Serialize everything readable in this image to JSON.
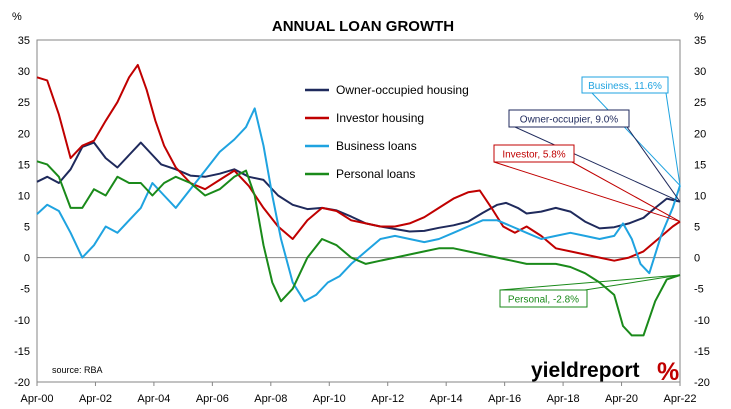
{
  "chart_data": {
    "type": "line",
    "title": "ANNUAL LOAN GROWTH",
    "ylabel_left": "%",
    "ylabel_right": "%",
    "ylim": [
      -20,
      35
    ],
    "yticks": [
      -20,
      -15,
      -10,
      -5,
      0,
      5,
      10,
      15,
      20,
      25,
      30,
      35
    ],
    "xlim": [
      2000.25,
      2022.25
    ],
    "xticks": [
      {
        "label": "Apr-00",
        "x": 2000.25
      },
      {
        "label": "Apr-02",
        "x": 2002.25
      },
      {
        "label": "Apr-04",
        "x": 2004.25
      },
      {
        "label": "Apr-06",
        "x": 2006.25
      },
      {
        "label": "Apr-08",
        "x": 2008.25
      },
      {
        "label": "Apr-10",
        "x": 2010.25
      },
      {
        "label": "Apr-12",
        "x": 2012.25
      },
      {
        "label": "Apr-14",
        "x": 2014.25
      },
      {
        "label": "Apr-16",
        "x": 2016.25
      },
      {
        "label": "Apr-18",
        "x": 2018.25
      },
      {
        "label": "Apr-20",
        "x": 2020.25
      },
      {
        "label": "Apr-22",
        "x": 2022.25
      }
    ],
    "legend_position": "top-center",
    "source": "source: RBA",
    "brand": {
      "text": "yieldreport",
      "mark": "%"
    },
    "series": [
      {
        "name": "Owner-occupied housing",
        "color": "#1f2a5c",
        "points": [
          [
            2000.25,
            12.2
          ],
          [
            2000.6,
            13.0
          ],
          [
            2001.0,
            12.0
          ],
          [
            2001.4,
            14.2
          ],
          [
            2001.8,
            17.8
          ],
          [
            2002.2,
            18.5
          ],
          [
            2002.6,
            16.0
          ],
          [
            2003.0,
            14.5
          ],
          [
            2003.4,
            16.5
          ],
          [
            2003.8,
            18.5
          ],
          [
            2004.2,
            16.5
          ],
          [
            2004.5,
            15.0
          ],
          [
            2005.0,
            14.2
          ],
          [
            2005.5,
            13.2
          ],
          [
            2006.0,
            13.0
          ],
          [
            2006.5,
            13.5
          ],
          [
            2007.0,
            14.2
          ],
          [
            2007.5,
            13.0
          ],
          [
            2008.0,
            12.5
          ],
          [
            2008.5,
            10.0
          ],
          [
            2009.0,
            8.5
          ],
          [
            2009.5,
            7.8
          ],
          [
            2010.0,
            8.0
          ],
          [
            2010.5,
            7.6
          ],
          [
            2011.0,
            6.6
          ],
          [
            2011.5,
            5.5
          ],
          [
            2012.0,
            5.0
          ],
          [
            2012.5,
            4.6
          ],
          [
            2013.0,
            4.2
          ],
          [
            2013.5,
            4.3
          ],
          [
            2014.0,
            4.8
          ],
          [
            2014.5,
            5.2
          ],
          [
            2015.0,
            5.8
          ],
          [
            2015.5,
            7.2
          ],
          [
            2016.0,
            8.5
          ],
          [
            2016.3,
            8.8
          ],
          [
            2016.7,
            8.0
          ],
          [
            2017.0,
            7.1
          ],
          [
            2017.5,
            7.4
          ],
          [
            2018.0,
            8.0
          ],
          [
            2018.5,
            7.4
          ],
          [
            2019.0,
            5.8
          ],
          [
            2019.5,
            4.7
          ],
          [
            2020.0,
            4.9
          ],
          [
            2020.5,
            5.5
          ],
          [
            2021.0,
            6.4
          ],
          [
            2021.4,
            8.0
          ],
          [
            2021.8,
            9.5
          ],
          [
            2022.25,
            9.0
          ]
        ]
      },
      {
        "name": "Investor housing",
        "color": "#c00000",
        "points": [
          [
            2000.25,
            29.0
          ],
          [
            2000.6,
            28.5
          ],
          [
            2001.0,
            23.0
          ],
          [
            2001.4,
            16.0
          ],
          [
            2001.8,
            18.0
          ],
          [
            2002.2,
            18.8
          ],
          [
            2002.6,
            22.0
          ],
          [
            2003.0,
            25.0
          ],
          [
            2003.4,
            29.0
          ],
          [
            2003.7,
            31.0
          ],
          [
            2004.0,
            27.0
          ],
          [
            2004.3,
            22.0
          ],
          [
            2004.6,
            18.0
          ],
          [
            2005.0,
            14.5
          ],
          [
            2005.5,
            12.0
          ],
          [
            2006.0,
            11.0
          ],
          [
            2006.5,
            12.5
          ],
          [
            2007.0,
            14.0
          ],
          [
            2007.5,
            11.5
          ],
          [
            2008.0,
            8.0
          ],
          [
            2008.5,
            5.0
          ],
          [
            2009.0,
            3.0
          ],
          [
            2009.5,
            6.0
          ],
          [
            2010.0,
            8.0
          ],
          [
            2010.5,
            7.5
          ],
          [
            2011.0,
            6.0
          ],
          [
            2011.5,
            5.5
          ],
          [
            2012.0,
            5.0
          ],
          [
            2012.5,
            5.0
          ],
          [
            2013.0,
            5.5
          ],
          [
            2013.5,
            6.5
          ],
          [
            2014.0,
            8.0
          ],
          [
            2014.5,
            9.5
          ],
          [
            2015.0,
            10.5
          ],
          [
            2015.4,
            10.8
          ],
          [
            2015.8,
            8.0
          ],
          [
            2016.2,
            5.0
          ],
          [
            2016.6,
            4.0
          ],
          [
            2017.0,
            5.0
          ],
          [
            2017.5,
            3.5
          ],
          [
            2018.0,
            1.5
          ],
          [
            2018.5,
            1.0
          ],
          [
            2019.0,
            0.5
          ],
          [
            2019.5,
            0.0
          ],
          [
            2020.0,
            -0.5
          ],
          [
            2020.5,
            0.0
          ],
          [
            2021.0,
            1.0
          ],
          [
            2021.5,
            3.0
          ],
          [
            2022.0,
            5.0
          ],
          [
            2022.25,
            5.8
          ]
        ]
      },
      {
        "name": "Business loans",
        "color": "#1fa3e0",
        "points": [
          [
            2000.25,
            7.0
          ],
          [
            2000.6,
            8.5
          ],
          [
            2001.0,
            7.5
          ],
          [
            2001.4,
            4.0
          ],
          [
            2001.8,
            0.0
          ],
          [
            2002.2,
            2.0
          ],
          [
            2002.6,
            5.0
          ],
          [
            2003.0,
            4.0
          ],
          [
            2003.4,
            6.0
          ],
          [
            2003.8,
            8.0
          ],
          [
            2004.2,
            12.0
          ],
          [
            2004.6,
            10.0
          ],
          [
            2005.0,
            8.0
          ],
          [
            2005.5,
            11.0
          ],
          [
            2006.0,
            14.0
          ],
          [
            2006.5,
            17.0
          ],
          [
            2007.0,
            19.0
          ],
          [
            2007.4,
            21.0
          ],
          [
            2007.7,
            24.0
          ],
          [
            2008.0,
            18.0
          ],
          [
            2008.3,
            10.0
          ],
          [
            2008.6,
            3.0
          ],
          [
            2009.0,
            -4.0
          ],
          [
            2009.4,
            -7.0
          ],
          [
            2009.8,
            -6.0
          ],
          [
            2010.2,
            -4.0
          ],
          [
            2010.6,
            -3.0
          ],
          [
            2011.0,
            -1.0
          ],
          [
            2011.5,
            1.0
          ],
          [
            2012.0,
            3.0
          ],
          [
            2012.5,
            3.5
          ],
          [
            2013.0,
            3.0
          ],
          [
            2013.5,
            2.5
          ],
          [
            2014.0,
            3.0
          ],
          [
            2014.5,
            4.0
          ],
          [
            2015.0,
            5.0
          ],
          [
            2015.5,
            6.0
          ],
          [
            2016.0,
            6.0
          ],
          [
            2016.5,
            5.0
          ],
          [
            2017.0,
            4.0
          ],
          [
            2017.5,
            3.0
          ],
          [
            2018.0,
            3.5
          ],
          [
            2018.5,
            4.0
          ],
          [
            2019.0,
            3.5
          ],
          [
            2019.5,
            3.0
          ],
          [
            2020.0,
            3.5
          ],
          [
            2020.3,
            5.5
          ],
          [
            2020.6,
            3.0
          ],
          [
            2020.9,
            -1.0
          ],
          [
            2021.2,
            -2.5
          ],
          [
            2021.6,
            3.5
          ],
          [
            2022.0,
            8.0
          ],
          [
            2022.25,
            11.6
          ]
        ]
      },
      {
        "name": "Personal loans",
        "color": "#1a8a1a",
        "points": [
          [
            2000.25,
            15.5
          ],
          [
            2000.6,
            15.0
          ],
          [
            2001.0,
            13.0
          ],
          [
            2001.4,
            8.0
          ],
          [
            2001.8,
            8.0
          ],
          [
            2002.2,
            11.0
          ],
          [
            2002.6,
            10.0
          ],
          [
            2003.0,
            13.0
          ],
          [
            2003.4,
            12.0
          ],
          [
            2003.8,
            12.0
          ],
          [
            2004.2,
            10.0
          ],
          [
            2004.6,
            12.0
          ],
          [
            2005.0,
            13.0
          ],
          [
            2005.5,
            12.0
          ],
          [
            2006.0,
            10.0
          ],
          [
            2006.5,
            11.0
          ],
          [
            2007.0,
            13.0
          ],
          [
            2007.4,
            14.0
          ],
          [
            2007.7,
            10.0
          ],
          [
            2008.0,
            2.0
          ],
          [
            2008.3,
            -4.0
          ],
          [
            2008.6,
            -7.0
          ],
          [
            2009.0,
            -5.0
          ],
          [
            2009.5,
            0.0
          ],
          [
            2010.0,
            3.0
          ],
          [
            2010.5,
            2.0
          ],
          [
            2011.0,
            0.0
          ],
          [
            2011.5,
            -1.0
          ],
          [
            2012.0,
            -0.5
          ],
          [
            2012.5,
            0.0
          ],
          [
            2013.0,
            0.5
          ],
          [
            2013.5,
            1.0
          ],
          [
            2014.0,
            1.5
          ],
          [
            2014.5,
            1.5
          ],
          [
            2015.0,
            1.0
          ],
          [
            2015.5,
            0.5
          ],
          [
            2016.0,
            0.0
          ],
          [
            2016.5,
            -0.5
          ],
          [
            2017.0,
            -1.0
          ],
          [
            2017.5,
            -1.0
          ],
          [
            2018.0,
            -1.0
          ],
          [
            2018.5,
            -1.5
          ],
          [
            2019.0,
            -2.5
          ],
          [
            2019.5,
            -4.0
          ],
          [
            2020.0,
            -6.0
          ],
          [
            2020.3,
            -11.0
          ],
          [
            2020.6,
            -12.5
          ],
          [
            2021.0,
            -12.5
          ],
          [
            2021.4,
            -7.0
          ],
          [
            2021.8,
            -3.5
          ],
          [
            2022.25,
            -2.8
          ]
        ]
      }
    ],
    "callouts": [
      {
        "text": "Business, 11.6%",
        "color": "#1fa3e0",
        "series": 2
      },
      {
        "text": "Owner-occupier, 9.0%",
        "color": "#1f2a5c",
        "series": 0
      },
      {
        "text": "Investor, 5.8%",
        "color": "#c00000",
        "series": 1
      },
      {
        "text": "Personal, -2.8%",
        "color": "#1a8a1a",
        "series": 3
      }
    ]
  }
}
